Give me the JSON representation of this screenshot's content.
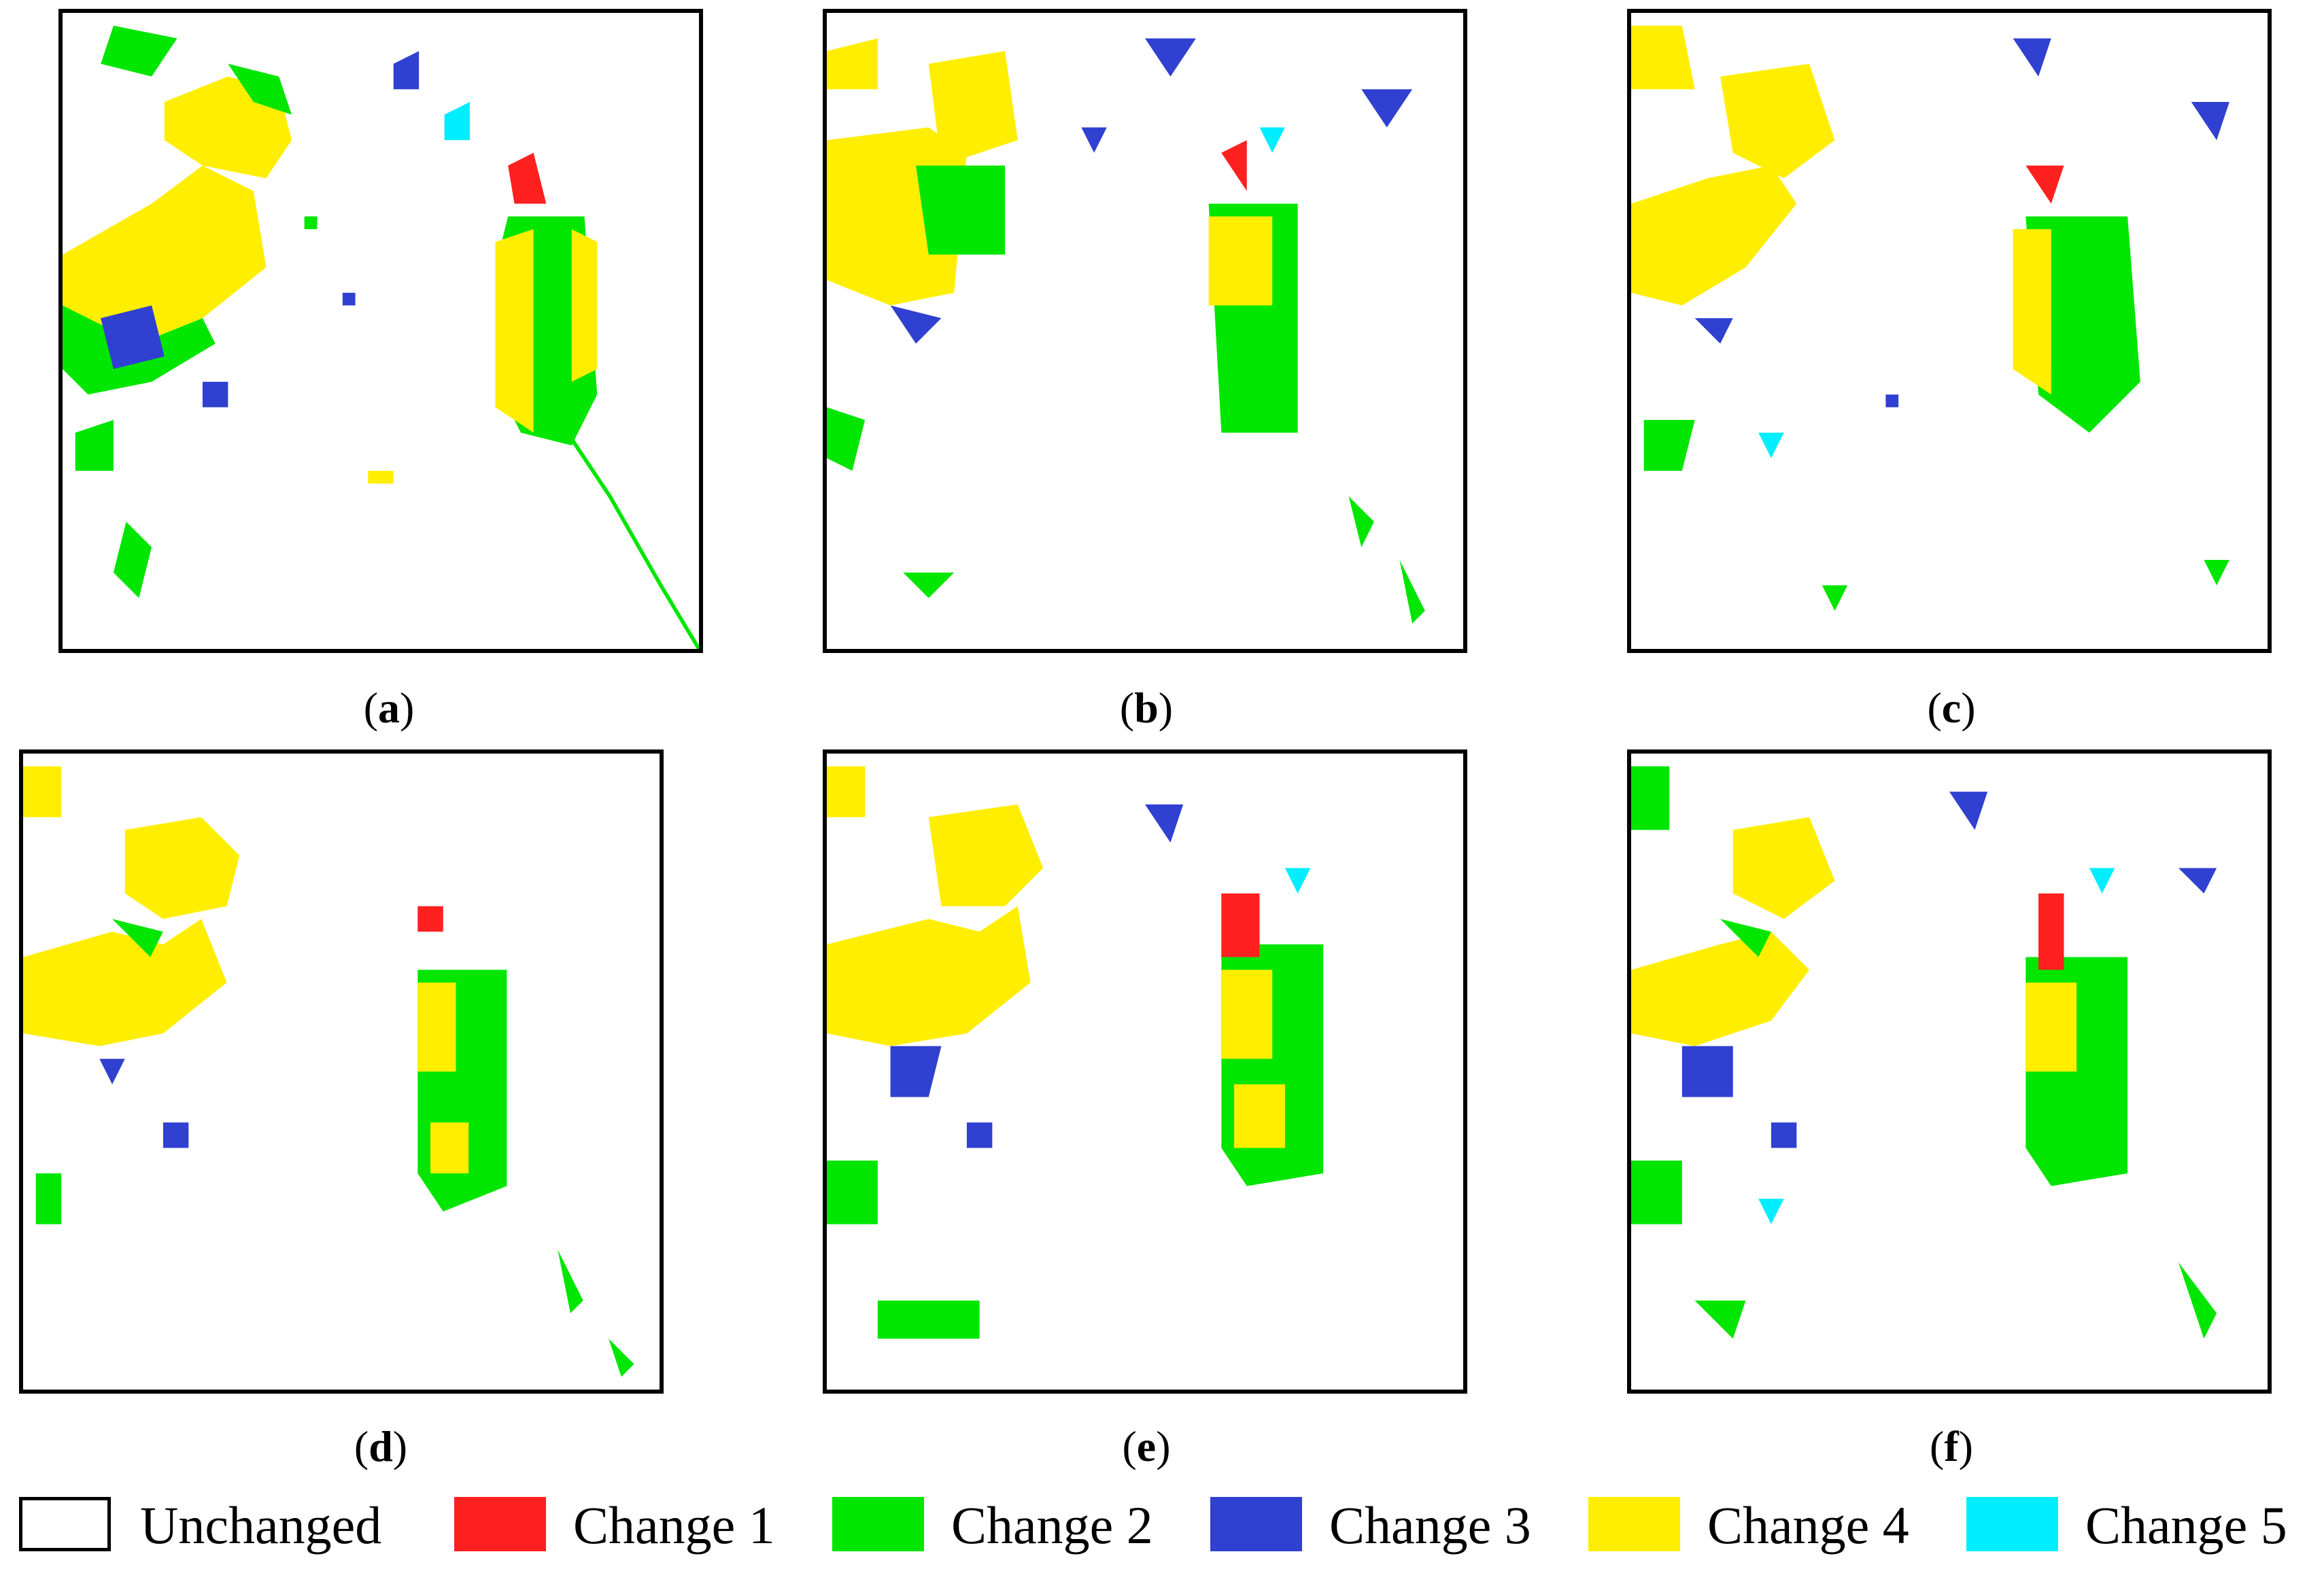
{
  "panels": [
    {
      "id": "a",
      "caption_open": "(",
      "caption_letter": "a",
      "caption_close": ")"
    },
    {
      "id": "b",
      "caption_open": "(",
      "caption_letter": "b",
      "caption_close": ")"
    },
    {
      "id": "c",
      "caption_open": "(",
      "caption_letter": "c",
      "caption_close": ")"
    },
    {
      "id": "d",
      "caption_open": "(",
      "caption_letter": "d",
      "caption_close": ")"
    },
    {
      "id": "e",
      "caption_open": "(",
      "caption_letter": "e",
      "caption_close": ")"
    },
    {
      "id": "f",
      "caption_open": "(",
      "caption_letter": "f",
      "caption_close": ")"
    }
  ],
  "legend": [
    {
      "label": "Unchanged",
      "color": "#ffffff"
    },
    {
      "label": "Change 1",
      "color": "#ff2020"
    },
    {
      "label": "Change 2",
      "color": "#00e600"
    },
    {
      "label": "Change 3",
      "color": "#3040d0"
    },
    {
      "label": "Change 4",
      "color": "#ffee00"
    },
    {
      "label": "Change 5",
      "color": "#00eeff"
    }
  ],
  "colors": {
    "border": "#000000",
    "change1": "#ff2020",
    "change2": "#00e600",
    "change3": "#3040d0",
    "change4": "#ffee00",
    "change5": "#00eeff"
  }
}
